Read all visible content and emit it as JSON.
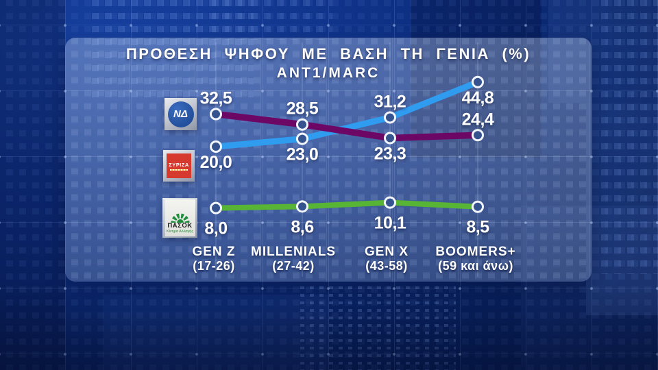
{
  "header": {
    "title": "ΠΡΟΘΕΣΗ ΨΗΦΟΥ ΜΕ ΒΑΣΗ ΤΗ ΓΕΝΙΑ (%)",
    "subtitle": "ANT1/MARC"
  },
  "chart_data": {
    "type": "line",
    "title": "ΠΡΟΘΕΣΗ ΨΗΦΟΥ ΜΕ ΒΑΣΗ ΤΗ ΓΕΝΙΑ (%)",
    "subtitle": "ANT1/MARC",
    "unit": "%",
    "grid": true,
    "legend_position": "left",
    "categories": [
      {
        "name": "GEN Z",
        "range": "(17-26)"
      },
      {
        "name": "MILLENIALS",
        "range": "(27-42)"
      },
      {
        "name": "GEN X",
        "range": "(43-58)"
      },
      {
        "name": "BOOMERS+",
        "range": "(59 και άνω)"
      }
    ],
    "series": [
      {
        "key": "nd",
        "name": "ΝΔ",
        "color": "#2f9cf0",
        "values": [
          20.0,
          23.0,
          31.2,
          44.8
        ],
        "labels": [
          "20,0",
          "23,0",
          "31,2",
          "44,8"
        ],
        "label_positions": [
          "below",
          "below",
          "above",
          "below"
        ]
      },
      {
        "key": "pasok",
        "name": "ΠΑΣΟΚ",
        "color": "#58b434",
        "values": [
          8.0,
          8.6,
          10.1,
          8.5
        ],
        "labels": [
          "8,0",
          "8,6",
          "10,1",
          "8,5"
        ],
        "label_positions": [
          "below",
          "below",
          "below",
          "below"
        ]
      },
      {
        "key": "syriza",
        "name": "ΣΥΡΙΖΑ",
        "color": "#6d0766",
        "values": [
          32.5,
          28.5,
          23.3,
          24.4
        ],
        "labels": [
          "32,5",
          "28,5",
          "23,3",
          "24,4"
        ],
        "label_positions": [
          "above",
          "above",
          "below",
          "above"
        ]
      }
    ]
  },
  "logos": {
    "nd": {
      "label": "ΝΔ"
    },
    "syriza": {
      "label": "ΣΥΡΙΖΑ"
    },
    "pasok": {
      "label": "ΠΑΣΟΚ",
      "sublabel": "Κίνημα Αλλαγής"
    }
  },
  "colors": {
    "nd_line": "#2f9cf0",
    "syriza_line": "#6d0766",
    "pasok_line": "#58b434",
    "background": "#0b2a74",
    "panel": "rgba(201,216,239,0.30)",
    "text": "#ffffff",
    "point_fill": "#35548f",
    "point_stroke": "#f2f6fc"
  }
}
